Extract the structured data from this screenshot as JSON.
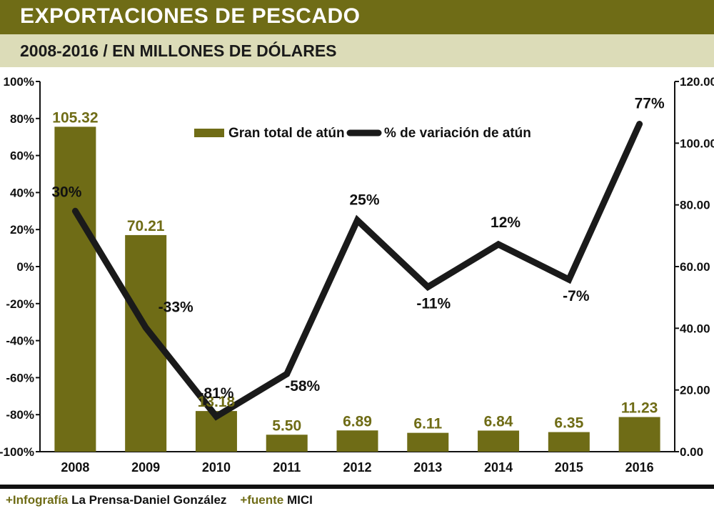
{
  "header": {
    "title": "EXPORTACIONES DE PESCADO",
    "subtitle": "2008-2016 / EN MILLONES DE DÓLARES"
  },
  "colors": {
    "bar": "#6f6c16",
    "line": "#1a1a1a",
    "header_bg": "#6f6c16",
    "subheader_bg": "#dcdcb8"
  },
  "chart_data": {
    "type": "bar",
    "categories": [
      "2008",
      "2009",
      "2010",
      "2011",
      "2012",
      "2013",
      "2014",
      "2015",
      "2016"
    ],
    "series": [
      {
        "name": "Gran total de atún",
        "type": "bar",
        "axis": "right",
        "values": [
          105.32,
          70.21,
          13.18,
          5.5,
          6.89,
          6.11,
          6.84,
          6.35,
          11.23
        ],
        "labels": [
          "105.32",
          "70.21",
          "13.18",
          "5.50",
          "6.89",
          "6.11",
          "6.84",
          "6.35",
          "11.23"
        ]
      },
      {
        "name": "% de variación de atún",
        "type": "line",
        "axis": "left",
        "values": [
          30,
          -33,
          -81,
          -58,
          25,
          -11,
          12,
          -7,
          77
        ],
        "labels": [
          "30%",
          "-33%",
          "-81%",
          "-58%",
          "25%",
          "-11%",
          "12%",
          "-7%",
          "77%"
        ]
      }
    ],
    "y_left": {
      "ylim": [
        -100,
        100
      ],
      "ticks": [
        "-100%",
        "-80%",
        "-60%",
        "-40%",
        "-20%",
        "0%",
        "20%",
        "40%",
        "60%",
        "80%",
        "100%"
      ]
    },
    "y_right": {
      "ylim": [
        0,
        120
      ],
      "ticks": [
        "0.00",
        "20.00",
        "40.00",
        "60.00",
        "80.00",
        "100.00",
        "120.00"
      ]
    },
    "legend_position": "top-center"
  },
  "footer": {
    "credit_label": "+Infografía",
    "credit_value": "La Prensa-Daniel González",
    "source_label": "+fuente",
    "source_value": "MICI"
  }
}
